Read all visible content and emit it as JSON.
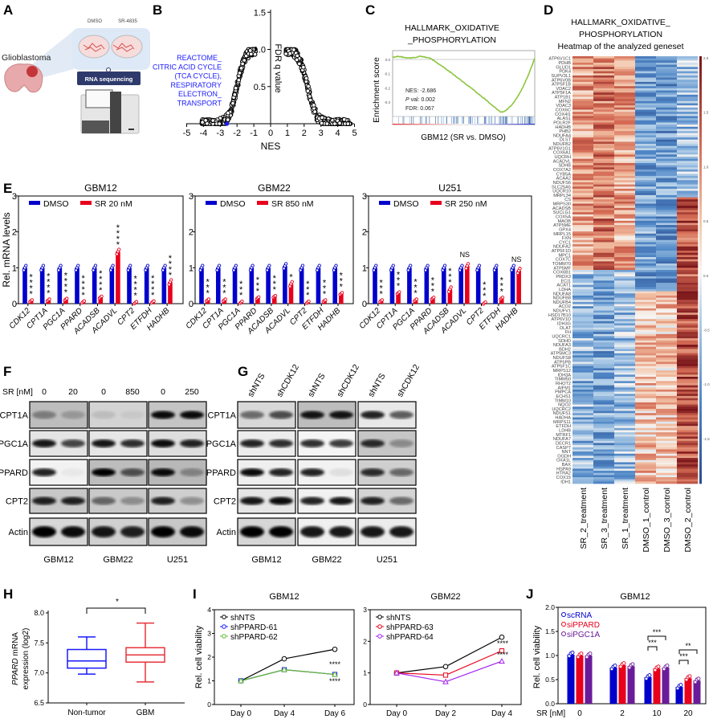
{
  "panel_labels": {
    "A": "A",
    "B": "B",
    "C": "C",
    "D": "D",
    "E": "E",
    "F": "F",
    "G": "G",
    "H": "H",
    "I": "I",
    "J": "J"
  },
  "panel_a": {
    "dish_labels": [
      "DMSO",
      "SR-4835"
    ],
    "tissue_label": "Glioblastoma",
    "method_label": "RNA sequencing"
  },
  "panel_b": {
    "xlabel": "NES",
    "ylabel": "FDR q value",
    "x_ticks": [
      "-5",
      "-4",
      "-3",
      "-2",
      "-1",
      "0",
      "1",
      "2",
      "3",
      "4",
      "5"
    ],
    "y_ticks": [
      "0.5",
      "1.0",
      "1.5"
    ],
    "xlim": [
      -5,
      5
    ],
    "ylim": [
      0,
      1.5
    ],
    "annotation": [
      "REACTOME_",
      "CITRIC ACID CYCLE",
      "(TCA CYCLE),",
      "RESPIRATORY",
      "ELECTRON_",
      "TRANSPORT"
    ],
    "highlight": {
      "nes": -2.6,
      "fdr": 0.0,
      "color": "#1a1aff"
    }
  },
  "panel_c": {
    "title": [
      "HALLMARK_OXIDATIVE",
      "_PHOSPHORYLATION"
    ],
    "ylabel": "Enrichment score",
    "y_ticks": [
      "0.0",
      "-0.1",
      "-0.2",
      "-0.3"
    ],
    "stats": {
      "nes": "NES: -2.686",
      "p_italic": "P",
      "p_rest": " val: 0.002",
      "fdr": "FDR: 0.067"
    },
    "xlabel": "GBM12 (SR vs. DMSO)",
    "curve_color": "#8dc63f",
    "min_score": -0.37
  },
  "panel_d": {
    "title": [
      "HALLMARK_OXIDATIVE_",
      "PHOSPHORYLATION"
    ],
    "subtitle": "Heatmap of the analyzed geneset",
    "samples": [
      "SR_2_treatment",
      "SR_3_treatment",
      "SR_1_treatment",
      "DMSO_1_control",
      "DMSO_3_control",
      "DMSO_2_control"
    ],
    "colorbar_ticks": [
      "2.0",
      "1.5",
      "1.0",
      "0.5",
      "0.0",
      "-0.5",
      "-1.0",
      "-1.5"
    ],
    "genes": [
      "ATP6V1C1",
      "PDHB",
      "GLUD1",
      "PDK4",
      "SUPV3L1",
      "ATP6V0B",
      "ATP5F1B",
      "VDAC2",
      "ATP5F1A",
      "ATP1B1",
      "MFN2",
      "VDAC3",
      "COX6C",
      "COX4I1",
      "ALAS1",
      "POLR2F",
      "HADHB",
      "PHB2",
      "NDUFA4",
      "DLST",
      "NDUFB2",
      "ATP6V1G1",
      "COX6A1",
      "UQCRH",
      "ACADVL",
      "SDHB",
      "COX7A2",
      "CYB5A",
      "ACAA2",
      "NDUFS6",
      "SLC25A5",
      "UQCR10",
      "MRPL34",
      "CS",
      "MRPS30",
      "ACADSB",
      "SUCLG1",
      "COX5A",
      "MAOB",
      "ATP5ME",
      "GPX4",
      "MRPL15",
      "FXN",
      "CYC1",
      "NDUFA2",
      "ATP5F1D",
      "MPC1",
      "COX7C",
      "TOMM70",
      "ATP5MF",
      "COX6B1",
      "PRDX3",
      "ECI1",
      "ACAT1",
      "LDHA",
      "NDUFA8",
      "NDUFB8",
      "NDUFB4",
      "ACO2",
      "NDUFV1",
      "HSD17B10",
      "ATP6V1D",
      "IDH3G",
      "DLAT",
      "FH",
      "UQCRC1",
      "SDHD",
      "NDUFA3",
      "BDH2",
      "ATP5MC3",
      "NDUFS8",
      "ATP5PB",
      "ATP5F1C",
      "MRPS12",
      "IDH3A",
      "TIMM50",
      "RHOT2",
      "AIFM1",
      "PMPCA",
      "ECHS1",
      "TIMM10",
      "NQO2",
      "UQCRC2",
      "NDUFS1",
      "HADHA",
      "MRPS11",
      "ETFDH",
      "LDHB",
      "MTRF1",
      "NDUFA7",
      "DECR1",
      "CASP7",
      "NNT",
      "OGDH",
      "OXA1L",
      "BAX",
      "HSPA9",
      "HTRA2",
      "COX15",
      "IDH1"
    ]
  },
  "panel_e": {
    "ylabel": "Rel. mRNA levels",
    "y_ticks": [
      "0",
      "1",
      "2",
      "3"
    ],
    "ylim": [
      0,
      3
    ],
    "genes": [
      "CDK12",
      "CPT1A",
      "PGC1A",
      "PPARD",
      "ACADSB",
      "ACADVL",
      "CPT2",
      "ETFDH",
      "HADHB"
    ],
    "dmso_color": "#0000cc",
    "sr_color": "#e8001c",
    "panels": [
      {
        "title": "GBM12",
        "legend": [
          "DMSO",
          "SR 20 nM"
        ],
        "dmso": [
          1,
          1,
          1,
          1,
          1,
          1,
          1,
          1,
          1
        ],
        "sr": [
          0.08,
          0.1,
          0.12,
          0.05,
          0.18,
          1.45,
          0.03,
          0.05,
          0.6
        ],
        "sig": [
          "****",
          "****",
          "****",
          "****",
          "****",
          "****",
          "****",
          "****",
          "****"
        ]
      },
      {
        "title": "GBM22",
        "legend": [
          "DMSO",
          "SR 850 nM"
        ],
        "dmso": [
          1,
          1,
          1,
          1,
          1,
          1.05,
          1,
          1,
          1
        ],
        "sr": [
          0.1,
          0.1,
          0.04,
          0.16,
          0.2,
          0.55,
          0.04,
          0.08,
          0.28
        ],
        "sig": [
          "***",
          "***",
          "***",
          "***",
          "***",
          "*",
          "***",
          "***",
          "***"
        ]
      },
      {
        "title": "U251",
        "legend": [
          "DMSO",
          "SR 250 nM"
        ],
        "dmso": [
          1,
          1,
          1,
          1,
          1,
          1,
          1,
          1,
          1
        ],
        "sr": [
          0.08,
          0.3,
          0.1,
          0.15,
          0.4,
          1.05,
          0.02,
          0.15,
          0.92
        ],
        "sig": [
          "***",
          "***",
          "***",
          "***",
          "***",
          "NS",
          "***",
          "***",
          "NS"
        ]
      }
    ]
  },
  "panel_f": {
    "sr_label": "SR [nM]",
    "doses": [
      "0",
      "20",
      "0",
      "850",
      "0",
      "250"
    ],
    "proteins": [
      "CPT1A",
      "PGC1A",
      "PPARD",
      "CPT2",
      "Actin"
    ],
    "cell_lines": [
      "GBM12",
      "GBM22",
      "U251"
    ],
    "band_intensity": [
      [
        [
          0.35,
          0.2
        ],
        [
          0.1,
          0.05
        ],
        [
          0.95,
          0.95
        ]
      ],
      [
        [
          0.9,
          0.7
        ],
        [
          0.9,
          0.8
        ],
        [
          0.95,
          0.85
        ]
      ],
      [
        [
          0.85,
          0.04
        ],
        [
          1.0,
          0.6
        ],
        [
          0.95,
          0.3
        ]
      ],
      [
        [
          0.85,
          0.85
        ],
        [
          0.5,
          0.3
        ],
        [
          0.85,
          0.3
        ]
      ],
      [
        [
          1.0,
          0.95
        ],
        [
          0.9,
          0.85
        ],
        [
          1.0,
          0.95
        ]
      ]
    ]
  },
  "panel_g": {
    "lanes": [
      "shNTS",
      "shCDK12",
      "shNTS",
      "shCDK12",
      "shNTS",
      "shCDK12"
    ],
    "proteins": [
      "CPT1A",
      "PGC1A",
      "PPARD",
      "CPT2",
      "Actin"
    ],
    "cell_lines": [
      "GBM12",
      "GBM22",
      "U251"
    ],
    "band_intensity": [
      [
        [
          0.5,
          0.65
        ],
        [
          0.9,
          0.9
        ],
        [
          0.85,
          0.6
        ]
      ],
      [
        [
          0.85,
          0.8
        ],
        [
          0.8,
          0.75
        ],
        [
          0.8,
          0.3
        ]
      ],
      [
        [
          0.95,
          0.85
        ],
        [
          0.85,
          0.08
        ],
        [
          0.8,
          0.5
        ]
      ],
      [
        [
          0.9,
          0.95
        ],
        [
          0.85,
          0.9
        ],
        [
          0.85,
          0.5
        ]
      ],
      [
        [
          1.0,
          1.0
        ],
        [
          0.9,
          0.9
        ],
        [
          0.9,
          0.9
        ]
      ]
    ]
  },
  "panel_h": {
    "ylabel_italic": "PPARD",
    "ylabel_rest": " mRNA",
    "ylabel_line2": "expression (log2)",
    "y_ticks": [
      "6.5",
      "7.0",
      "7.5",
      "8.0"
    ],
    "ylim": [
      6.5,
      8.0
    ],
    "groups": [
      {
        "name": "Non-tumor",
        "color": "#1a1aff",
        "min": 6.98,
        "q1": 7.08,
        "median": 7.2,
        "q3": 7.39,
        "max": 7.6
      },
      {
        "name": "GBM",
        "color": "#e8333c",
        "min": 6.85,
        "q1": 7.18,
        "median": 7.3,
        "q3": 7.42,
        "max": 7.83
      }
    ],
    "significance": "*"
  },
  "panel_i": {
    "ylabel": "Rel. cell viability",
    "plots": [
      {
        "title": "GBM12",
        "x": [
          "Day 0",
          "Day 4",
          "Day 6"
        ],
        "y_ticks": [
          "0",
          "1",
          "2",
          "3",
          "4"
        ],
        "ylim": [
          0,
          4
        ],
        "series": [
          {
            "name": "shNTS",
            "color": "#000000",
            "marker": "circle",
            "values": [
              1,
              1.93,
              2.33
            ]
          },
          {
            "name": "shPPARD-61",
            "color": "#1a1aff",
            "marker": "square",
            "values": [
              1,
              1.47,
              1.27
            ]
          },
          {
            "name": "shPPARD-62",
            "color": "#66bb33",
            "marker": "triangle",
            "values": [
              1,
              1.47,
              1.27
            ]
          }
        ],
        "sig": [
          "****",
          "****"
        ]
      },
      {
        "title": "GBM22",
        "x": [
          "Day 0",
          "Day 2",
          "Day 4"
        ],
        "y_ticks": [
          "0",
          "1",
          "2",
          "3"
        ],
        "ylim": [
          0,
          3
        ],
        "series": [
          {
            "name": "shNTS",
            "color": "#000000",
            "marker": "circle",
            "values": [
              1,
              1.2,
              2.13
            ]
          },
          {
            "name": "shPPARD-63",
            "color": "#e8001c",
            "marker": "square",
            "values": [
              1,
              0.93,
              1.7
            ]
          },
          {
            "name": "shPPARD-64",
            "color": "#a020f0",
            "marker": "triangle",
            "values": [
              1,
              0.72,
              1.37
            ]
          }
        ],
        "sig": [
          "****",
          "****"
        ]
      }
    ]
  },
  "panel_j": {
    "title": "GBM12",
    "ylabel": "Rel. cell viability",
    "sr_label": "SR [nM]",
    "doses": [
      "0",
      "2",
      "10",
      "20"
    ],
    "y_ticks": [
      "0.0",
      "0.5",
      "1.0",
      "1.5",
      "2.0"
    ],
    "ylim": [
      0,
      2
    ],
    "series": [
      {
        "name": "scRNA",
        "color": "#0000cc",
        "values": [
          1.02,
          0.75,
          0.55,
          0.35
        ]
      },
      {
        "name": "siPPARD",
        "color": "#e8001c",
        "values": [
          1.0,
          0.8,
          0.73,
          0.53
        ]
      },
      {
        "name": "siPGC1A",
        "color": "#6a1b9a",
        "values": [
          1.0,
          0.78,
          0.75,
          0.48
        ]
      }
    ],
    "sig": {
      "dose_10": [
        "***",
        "***"
      ],
      "dose_20": [
        "***",
        "**"
      ]
    }
  }
}
